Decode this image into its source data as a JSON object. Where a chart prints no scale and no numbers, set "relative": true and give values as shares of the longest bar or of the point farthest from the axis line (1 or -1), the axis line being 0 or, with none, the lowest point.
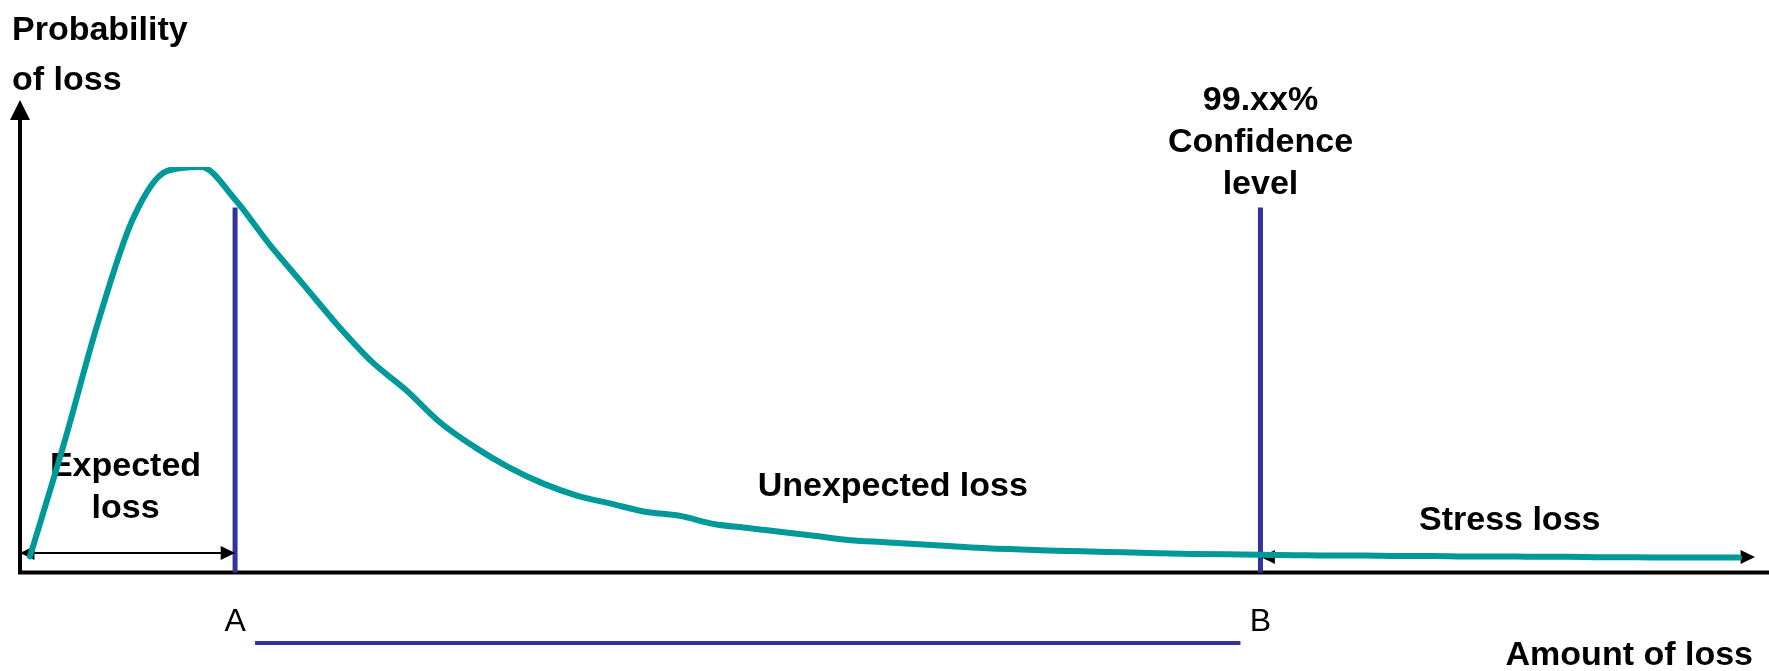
{
  "chart_data": {
    "type": "line",
    "relative": true,
    "xlabel": "Amount of loss",
    "ylabel": "Probability of loss",
    "categories": [
      null,
      null,
      null,
      null,
      null,
      null,
      "A",
      null,
      null,
      null,
      null,
      null,
      null,
      null,
      null,
      null,
      null,
      null,
      null,
      null,
      null,
      null,
      null,
      null,
      null,
      null,
      null,
      null,
      null,
      null,
      null,
      null,
      null,
      null,
      null,
      null,
      "B",
      null,
      null,
      null,
      null,
      null,
      null,
      null,
      null,
      null,
      null,
      null,
      null,
      null,
      null
    ],
    "series": [
      {
        "color": "#009999",
        "values": [
          0.04,
          0.32,
          0.62,
          0.87,
          0.99,
          1,
          0.92,
          0.81,
          0.71,
          0.61,
          0.52,
          0.45,
          0.37,
          0.31,
          0.26,
          0.22,
          0.19,
          0.17,
          0.15,
          0.14,
          0.12,
          0.11,
          0.1,
          0.09,
          0.08,
          0.075,
          0.07,
          0.065,
          0.06,
          0.057,
          0.054,
          0.052,
          0.05,
          0.048,
          0.046,
          0.045,
          0.044,
          0.043,
          0.042,
          0.042,
          0.041,
          0.041,
          0.04,
          0.04,
          0.039,
          0.039,
          0.038,
          0.038,
          0.037,
          0.037,
          0.037
        ]
      }
    ],
    "ref_lines": [
      {
        "axis": "x",
        "value": "A",
        "color": "#333399"
      },
      {
        "axis": "x",
        "value": "B",
        "label": "99.xx% Confidence level",
        "color": "#333399"
      }
    ],
    "annotations": [
      "Expected loss",
      "Unexpected loss",
      "Stress loss"
    ],
    "grid": false,
    "legend": false,
    "marker": "none",
    "line_style": "solid"
  }
}
